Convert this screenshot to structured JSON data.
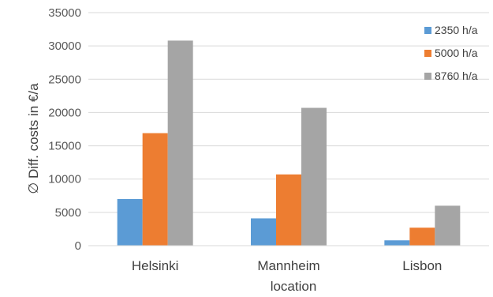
{
  "chart_data": {
    "type": "bar",
    "categories": [
      "Helsinki",
      "Mannheim",
      "Lisbon"
    ],
    "series": [
      {
        "name": "2350 h/a",
        "values": [
          7000,
          4100,
          800
        ],
        "color": "#5b9bd5"
      },
      {
        "name": "5000 h/a",
        "values": [
          16900,
          10700,
          2700
        ],
        "color": "#ed7d31"
      },
      {
        "name": "8760 h/a",
        "values": [
          30800,
          20700,
          6000
        ],
        "color": "#a5a5a5"
      }
    ],
    "ylabel": "∅ Diff. costs in €/a",
    "xlabel": "location",
    "ylim": [
      0,
      35000
    ],
    "yticks": [
      0,
      5000,
      10000,
      15000,
      20000,
      25000,
      30000,
      35000
    ],
    "gridlines": true,
    "legend_position": "top-right"
  }
}
